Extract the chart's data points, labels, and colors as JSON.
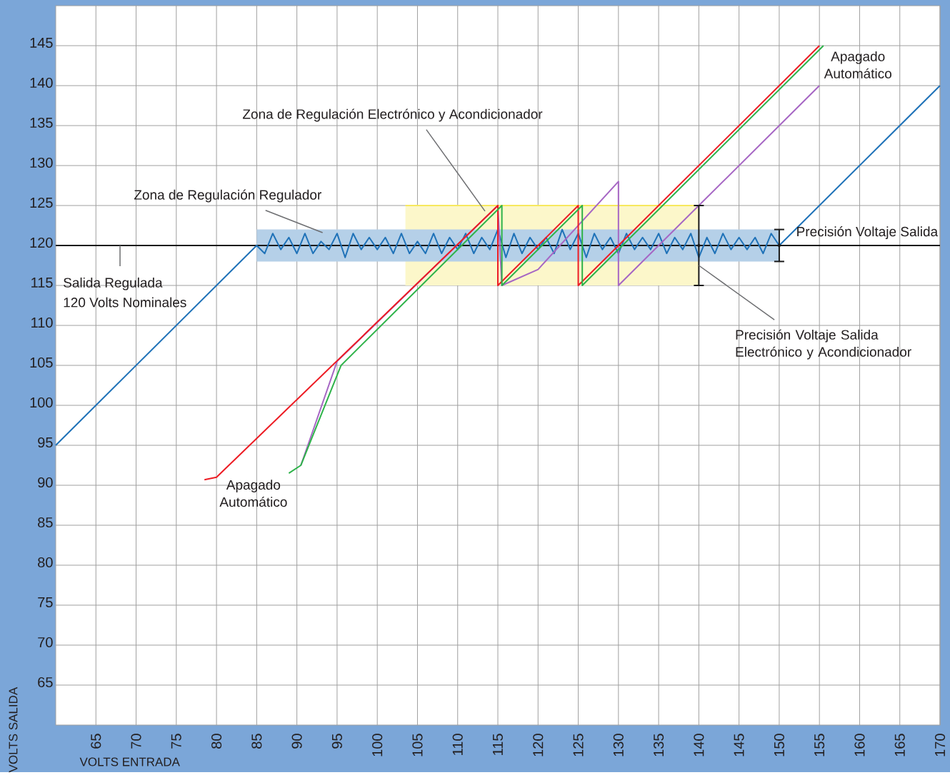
{
  "chart_data": {
    "type": "line",
    "xlabel": "VOLTS ENTRADA",
    "ylabel": "VOLTS SALIDA",
    "xlim": [
      60,
      170
    ],
    "ylim": [
      60,
      150
    ],
    "xticks": [
      65,
      70,
      75,
      80,
      85,
      90,
      95,
      100,
      105,
      110,
      115,
      120,
      125,
      130,
      135,
      140,
      145,
      150,
      155,
      160,
      165,
      170
    ],
    "yticks": [
      65,
      70,
      75,
      80,
      85,
      90,
      95,
      100,
      105,
      110,
      115,
      120,
      125,
      130,
      135,
      140,
      145
    ],
    "grid": true,
    "ref_lines": [
      {
        "axis": "y",
        "value": 120,
        "color": "#1a1a1a"
      }
    ],
    "series": [
      {
        "color": "#f7e85e",
        "x": [
          103.5,
          140
        ],
        "values": [
          125,
          125
        ],
        "lower": [
          115,
          115
        ],
        "upper": [
          125,
          125
        ]
      },
      {
        "color": "#1f72b8",
        "x": [
          60,
          85,
          86,
          87,
          88,
          89,
          90,
          91,
          92,
          93,
          94,
          95,
          96,
          97,
          98,
          99,
          100,
          101,
          102,
          103,
          104,
          105,
          106,
          107,
          108,
          109,
          110,
          111,
          112,
          113,
          114,
          115,
          116,
          117,
          118,
          119,
          120,
          121,
          122,
          123,
          124,
          125,
          126,
          127,
          128,
          129,
          130,
          131,
          132,
          133,
          134,
          135,
          136,
          137,
          138,
          139,
          140,
          141,
          142,
          143,
          144,
          145,
          146,
          147,
          148,
          149,
          150,
          170
        ],
        "values": [
          95,
          120,
          119,
          121.5,
          119.5,
          121,
          119,
          121.5,
          119,
          120.5,
          119.5,
          121.5,
          118.5,
          121.5,
          119.5,
          121,
          119.5,
          121,
          119,
          121.5,
          119,
          120.5,
          119,
          121.5,
          119,
          121,
          119.5,
          121.5,
          119,
          121,
          119.5,
          122,
          118.5,
          121.5,
          119,
          121,
          119.5,
          121,
          119,
          122,
          119.5,
          121.5,
          118.5,
          121.5,
          119.5,
          121,
          119,
          121.5,
          119.5,
          121,
          119.5,
          121.5,
          119,
          121,
          119.5,
          121.5,
          118.5,
          121,
          119,
          121.5,
          119.5,
          121,
          119.5,
          121,
          119,
          121.5,
          120,
          140
        ],
        "lower": [
          null,
          118,
          118,
          118,
          118,
          118,
          118,
          118,
          118,
          118,
          118,
          118,
          118,
          118,
          118,
          118,
          118,
          118,
          118,
          118,
          118,
          118,
          118,
          118,
          118,
          118,
          118,
          118,
          118,
          118,
          118,
          118,
          118,
          118,
          118,
          118,
          118,
          118,
          118,
          118,
          118,
          118,
          118,
          118,
          118,
          118,
          118,
          118,
          118,
          118,
          118,
          118,
          118,
          118,
          118,
          118,
          118,
          118,
          118,
          118,
          118,
          118,
          118,
          118,
          118,
          118,
          118,
          null
        ],
        "upper": [
          null,
          122,
          122,
          122,
          122,
          122,
          122,
          122,
          122,
          122,
          122,
          122,
          122,
          122,
          122,
          122,
          122,
          122,
          122,
          122,
          122,
          122,
          122,
          122,
          122,
          122,
          122,
          122,
          122,
          122,
          122,
          122,
          122,
          122,
          122,
          122,
          122,
          122,
          122,
          122,
          122,
          122,
          122,
          122,
          122,
          122,
          122,
          122,
          122,
          122,
          122,
          122,
          122,
          122,
          122,
          122,
          122,
          122,
          122,
          122,
          122,
          122,
          122,
          122,
          122,
          122,
          122,
          null
        ]
      },
      {
        "color": "#a666c4",
        "x": [
          90.5,
          95,
          115,
          115.5,
          120,
          130,
          130,
          155
        ],
        "values": [
          92.5,
          105.5,
          125,
          115,
          117,
          128,
          115,
          140
        ]
      },
      {
        "color": "#ed1c24",
        "x": [
          78.5,
          80,
          115,
          115,
          125,
          125,
          155
        ],
        "values": [
          90.7,
          91,
          125,
          115,
          125,
          115,
          145
        ]
      },
      {
        "color": "#2eb34a",
        "x": [
          89,
          90.5,
          95.5,
          115.5,
          115.5,
          125.5,
          125.5,
          155.5
        ],
        "values": [
          91.5,
          92.5,
          105,
          125,
          115,
          125,
          115,
          145
        ]
      },
      {
        "type": "scatter",
        "color": "#1a1a1a",
        "x": [
          140,
          150
        ],
        "values": [
          120,
          120
        ],
        "errors": [
          [
            115,
            125
          ],
          [
            118,
            122
          ]
        ]
      }
    ],
    "annotations": [
      "Zona de Regulación Electrónico y Acondicionador",
      "Zona de Regulación Regulador",
      {
        "text": "Salida Regulada",
        "x": 68,
        "y": 120
      },
      "120 Volts Nominales",
      {
        "text": "Apagado Automático",
        "x": 78.5,
        "y": 90.7
      },
      {
        "text": "Apagado Automático",
        "x": 155,
        "y": 145
      },
      {
        "text": "Precisión Voltaje Salida",
        "x": 150,
        "y": 120
      },
      {
        "text": "Precisión Voltaje Salida Electrónico y Acondicionador",
        "x": 140,
        "y": 117.5
      }
    ]
  }
}
